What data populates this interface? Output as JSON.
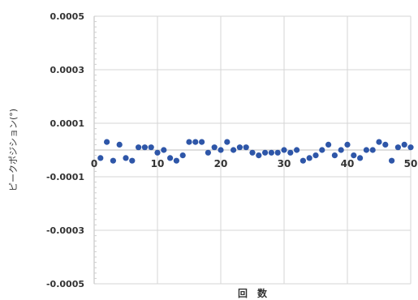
{
  "chart_data": {
    "type": "scatter",
    "title": "",
    "xlabel": "回　数",
    "ylabel": "ピークポジション(°)",
    "xlim": [
      0,
      50
    ],
    "ylim": [
      -0.0005,
      0.0005
    ],
    "x_ticks": [
      0,
      10,
      20,
      30,
      40,
      50
    ],
    "y_ticks": [
      0.0005,
      0.0003,
      0.0001,
      -0.0001,
      -0.0003,
      -0.0005
    ],
    "y_tick_labels": [
      "0.0005",
      "0.0003",
      "0.0001",
      "-0.0001",
      "-0.0003",
      "-0.0005"
    ],
    "x_tick_labels": [
      "0",
      "10",
      "20",
      "30",
      "40",
      "50"
    ],
    "grid": true,
    "legend": "none",
    "marker_color": "#2e56a8",
    "series": [
      {
        "x": [
          1,
          2,
          3,
          4,
          5,
          6,
          7,
          8,
          9,
          10,
          11,
          12,
          13,
          14,
          15,
          16,
          17,
          18,
          19,
          20,
          21,
          22,
          23,
          24,
          25,
          26,
          27,
          28,
          29,
          30,
          31,
          32,
          33,
          34,
          35,
          36,
          37,
          38,
          39,
          40,
          41,
          42,
          43,
          44,
          45,
          46,
          47,
          48,
          49,
          50
        ],
        "values": [
          -3e-05,
          3e-05,
          -4e-05,
          2e-05,
          -3e-05,
          -4e-05,
          1e-05,
          1e-05,
          1e-05,
          -1e-05,
          0.0,
          -3e-05,
          -4e-05,
          -2e-05,
          3e-05,
          3e-05,
          3e-05,
          -1e-05,
          1e-05,
          0.0,
          3e-05,
          0.0,
          1e-05,
          1e-05,
          -1e-05,
          -2e-05,
          -1e-05,
          -1e-05,
          -1e-05,
          0.0,
          -1e-05,
          0.0,
          -4e-05,
          -3e-05,
          -2e-05,
          0.0,
          2e-05,
          -2e-05,
          0.0,
          2e-05,
          -2e-05,
          -3e-05,
          0.0,
          0.0,
          3e-05,
          2e-05,
          -4e-05,
          1e-05,
          2e-05,
          1e-05
        ]
      }
    ]
  }
}
